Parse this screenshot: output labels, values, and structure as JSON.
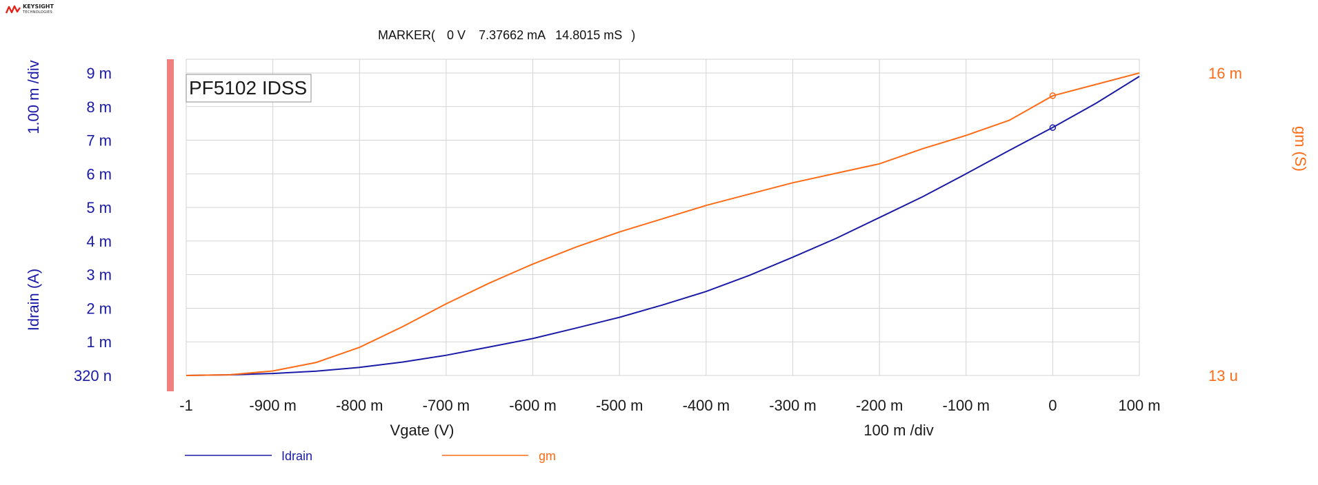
{
  "header": {
    "logo_name": "keysight-logo-icon",
    "logo_line1": "KEYSIGHT",
    "logo_line2": "TECHNOLOGIES",
    "marker_prefix": "MARKER(",
    "marker_x": "0 V",
    "marker_y1": "7.37662 mA",
    "marker_y2": "14.8015 mS",
    "marker_suffix": ")"
  },
  "chart_title": "PF5102 IDSS",
  "left_axis": {
    "label": "Idrain (A)",
    "div_label": "1.00 m /div"
  },
  "right_axis": {
    "label": "gm (S)",
    "top_label": "16 m",
    "bottom_label": "13 u"
  },
  "x_axis": {
    "label": "Vgate (V)",
    "div_label": "100 m /div"
  },
  "legend": [
    {
      "name": "Idrain",
      "color": "#1a1aa8"
    },
    {
      "name": "gm",
      "color": "#ff6a14"
    }
  ],
  "colors": {
    "idrain": "#1a1aa8",
    "gm": "#ff6a14",
    "grid": "#d3d3d3",
    "bar": "#f08080"
  },
  "chart_data": {
    "type": "line",
    "title": "PF5102 IDSS",
    "xlabel": "Vgate (V)",
    "ylabel": "Idrain (A)",
    "y2label": "gm (S)",
    "xlim": [
      -1.0,
      0.1
    ],
    "ylim": [
      3.2e-07,
      0.009
    ],
    "y2lim": [
      1.3e-05,
      0.016
    ],
    "grid": true,
    "legend_position": "bottom-left",
    "x_ticks": [
      "-1",
      "-900 m",
      "-800 m",
      "-700 m",
      "-600 m",
      "-500 m",
      "-400 m",
      "-300 m",
      "-200 m",
      "-100 m",
      "0",
      "100 m"
    ],
    "y_ticks": [
      "320 n",
      "1 m",
      "2 m",
      "3 m",
      "4 m",
      "5 m",
      "6 m",
      "7 m",
      "8 m",
      "9 m"
    ],
    "x": [
      -1.0,
      -0.95,
      -0.9,
      -0.85,
      -0.8,
      -0.75,
      -0.7,
      -0.65,
      -0.6,
      -0.55,
      -0.5,
      -0.45,
      -0.4,
      -0.35,
      -0.3,
      -0.25,
      -0.2,
      -0.15,
      -0.1,
      -0.05,
      0.0,
      0.05,
      0.1
    ],
    "series": [
      {
        "name": "Idrain",
        "axis": "left",
        "color": "#1a1aa8",
        "values": [
          3e-07,
          2e-05,
          6e-05,
          0.00013,
          0.00024,
          0.0004,
          0.0006,
          0.00085,
          0.0011,
          0.00141,
          0.00173,
          0.0021,
          0.0025,
          0.00298,
          0.00352,
          0.00408,
          0.0047,
          0.00532,
          0.006,
          0.0067,
          0.00738,
          0.0081,
          0.0089
        ]
      },
      {
        "name": "gm",
        "axis": "right",
        "color": "#ff6a14",
        "values": [
          1.3e-05,
          5e-05,
          0.00025,
          0.0007,
          0.0015,
          0.0026,
          0.0038,
          0.0049,
          0.0059,
          0.0068,
          0.0076,
          0.0083,
          0.009,
          0.0096,
          0.0102,
          0.0107,
          0.0112,
          0.012,
          0.0127,
          0.0135,
          0.0148,
          0.0154,
          0.016
        ]
      }
    ],
    "marker": {
      "x": 0.0,
      "Idrain": 0.00737662,
      "gm": 0.0148015
    }
  }
}
